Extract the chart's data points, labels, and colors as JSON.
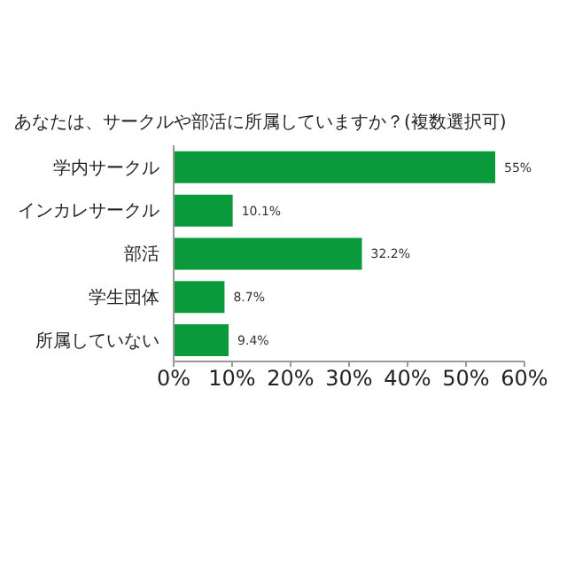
{
  "chart_data": {
    "type": "bar",
    "orientation": "horizontal",
    "title": "あなたは、サークルや部活に所属していますか？(複数選択可)",
    "categories": [
      "学内サークル",
      "インカレサークル",
      "部活",
      "学生団体",
      "所属していない"
    ],
    "values": [
      55,
      10.1,
      32.2,
      8.7,
      9.4
    ],
    "color": "#0a9a3c",
    "value_labels": [
      "55%",
      "10.1%",
      "32.2%",
      "8.7%",
      "9.4%"
    ],
    "xlim": [
      0,
      60
    ],
    "xticks": [
      {
        "value": 0,
        "label": "0%"
      },
      {
        "value": 10,
        "label": "10%"
      },
      {
        "value": 20,
        "label": "20%"
      },
      {
        "value": 30,
        "label": "30%"
      },
      {
        "value": 40,
        "label": "40%"
      },
      {
        "value": 50,
        "label": "50%"
      },
      {
        "value": 60,
        "label": "60%"
      }
    ],
    "grid": false
  }
}
